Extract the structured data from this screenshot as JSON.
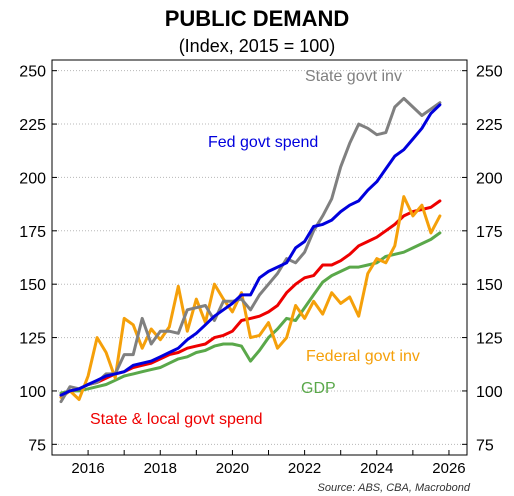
{
  "chart_data": {
    "type": "line",
    "title": "PUBLIC DEMAND",
    "subtitle": "(Index, 2015 = 100)",
    "source": "Source: ABS, CBA, Macrobond",
    "xlim": [
      2015,
      2026.5
    ],
    "ylim": [
      70,
      255
    ],
    "yticks": [
      75,
      100,
      125,
      150,
      175,
      200,
      225,
      250
    ],
    "xticks": [
      2016,
      2018,
      2020,
      2022,
      2024,
      2026
    ],
    "grid": "horizontal dotted",
    "series": [
      {
        "name": "State govt inv",
        "color": "#808080",
        "x": [
          2015.25,
          2015.5,
          2015.75,
          2016.0,
          2016.25,
          2016.5,
          2016.75,
          2017.0,
          2017.25,
          2017.5,
          2017.75,
          2018.0,
          2018.25,
          2018.5,
          2018.75,
          2019.0,
          2019.25,
          2019.5,
          2019.75,
          2020.0,
          2020.25,
          2020.5,
          2020.75,
          2021.0,
          2021.25,
          2021.5,
          2021.75,
          2022.0,
          2022.25,
          2022.5,
          2022.75,
          2023.0,
          2023.25,
          2023.5,
          2023.75,
          2024.0,
          2024.25,
          2024.5,
          2024.75,
          2025.0,
          2025.25,
          2025.5,
          2025.75
        ],
        "y": [
          95,
          102,
          101,
          103,
          104,
          108,
          108,
          117,
          117,
          134,
          122,
          128,
          128,
          127,
          138,
          139,
          140,
          133,
          142,
          142,
          143,
          138,
          145,
          150,
          155,
          162,
          160,
          165,
          175,
          182,
          190,
          205,
          216,
          225,
          223,
          220,
          221,
          233,
          237,
          233,
          229,
          232,
          235
        ]
      },
      {
        "name": "Fed govt spend",
        "color": "#0000dd",
        "x": [
          2015.25,
          2015.5,
          2015.75,
          2016.0,
          2016.25,
          2016.5,
          2016.75,
          2017.0,
          2017.25,
          2017.5,
          2017.75,
          2018.0,
          2018.25,
          2018.5,
          2018.75,
          2019.0,
          2019.25,
          2019.5,
          2019.75,
          2020.0,
          2020.25,
          2020.5,
          2020.75,
          2021.0,
          2021.25,
          2021.5,
          2021.75,
          2022.0,
          2022.25,
          2022.5,
          2022.75,
          2023.0,
          2023.25,
          2023.5,
          2023.75,
          2024.0,
          2024.25,
          2024.5,
          2024.75,
          2025.0,
          2025.25,
          2025.5,
          2025.75
        ],
        "y": [
          98,
          100,
          101,
          103,
          105,
          107,
          108,
          109,
          112,
          113,
          114,
          116,
          118,
          120,
          124,
          127,
          131,
          135,
          138,
          141,
          145,
          145,
          153,
          156,
          158,
          160,
          167,
          170,
          177,
          178,
          180,
          184,
          187,
          189,
          194,
          198,
          204,
          210,
          213,
          218,
          223,
          230,
          234
        ]
      },
      {
        "name": "Federal govt inv",
        "color": "#f5a00a",
        "x": [
          2015.25,
          2015.5,
          2015.75,
          2016.0,
          2016.25,
          2016.5,
          2016.75,
          2017.0,
          2017.25,
          2017.5,
          2017.75,
          2018.0,
          2018.25,
          2018.5,
          2018.75,
          2019.0,
          2019.25,
          2019.5,
          2019.75,
          2020.0,
          2020.25,
          2020.5,
          2020.75,
          2021.0,
          2021.25,
          2021.5,
          2021.75,
          2022.0,
          2022.25,
          2022.5,
          2022.75,
          2023.0,
          2023.25,
          2023.5,
          2023.75,
          2024.0,
          2024.25,
          2024.5,
          2024.75,
          2025.0,
          2025.25,
          2025.5,
          2025.75
        ],
        "y": [
          97,
          100,
          96,
          107,
          125,
          118,
          106,
          134,
          131,
          120,
          129,
          124,
          130,
          149,
          128,
          143,
          132,
          150,
          143,
          137,
          146,
          125,
          126,
          132,
          120,
          125,
          140,
          134,
          142,
          136,
          146,
          141,
          144,
          135,
          155,
          162,
          160,
          168,
          191,
          182,
          187,
          174,
          182
        ]
      },
      {
        "name": "State & local govt spend",
        "color": "#ee0000",
        "x": [
          2015.25,
          2015.5,
          2015.75,
          2016.0,
          2016.25,
          2016.5,
          2016.75,
          2017.0,
          2017.25,
          2017.5,
          2017.75,
          2018.0,
          2018.25,
          2018.5,
          2018.75,
          2019.0,
          2019.25,
          2019.5,
          2019.75,
          2020.0,
          2020.25,
          2020.5,
          2020.75,
          2021.0,
          2021.25,
          2021.5,
          2021.75,
          2022.0,
          2022.25,
          2022.5,
          2022.75,
          2023.0,
          2023.25,
          2023.5,
          2023.75,
          2024.0,
          2024.25,
          2024.5,
          2024.75,
          2025.0,
          2025.25,
          2025.5,
          2025.75
        ],
        "y": [
          98,
          100,
          101,
          103,
          104,
          106,
          108,
          109,
          111,
          112,
          113,
          115,
          117,
          118,
          120,
          121,
          122,
          125,
          126,
          128,
          133,
          134,
          135,
          137,
          140,
          146,
          150,
          153,
          154,
          159,
          159,
          161,
          164,
          168,
          170,
          172,
          175,
          178,
          182,
          184,
          185,
          186,
          189
        ]
      },
      {
        "name": "GDP",
        "color": "#5aa84a",
        "x": [
          2015.25,
          2015.5,
          2015.75,
          2016.0,
          2016.25,
          2016.5,
          2016.75,
          2017.0,
          2017.25,
          2017.5,
          2017.75,
          2018.0,
          2018.25,
          2018.5,
          2018.75,
          2019.0,
          2019.25,
          2019.5,
          2019.75,
          2020.0,
          2020.25,
          2020.5,
          2020.75,
          2021.0,
          2021.25,
          2021.5,
          2021.75,
          2022.0,
          2022.25,
          2022.5,
          2022.75,
          2023.0,
          2023.25,
          2023.5,
          2023.75,
          2024.0,
          2024.25,
          2024.5,
          2024.75,
          2025.0,
          2025.25,
          2025.5,
          2025.75
        ],
        "y": [
          99,
          100,
          100,
          101,
          102,
          103,
          105,
          107,
          108,
          109,
          110,
          111,
          113,
          115,
          116,
          118,
          119,
          121,
          122,
          122,
          121,
          114,
          119,
          125,
          129,
          134,
          133,
          139,
          145,
          151,
          154,
          156,
          158,
          158,
          159,
          160,
          163,
          164,
          165,
          167,
          169,
          171,
          174
        ]
      }
    ],
    "labels": [
      {
        "text": "State govt inv",
        "series": 0
      },
      {
        "text": "Fed govt spend",
        "series": 1
      },
      {
        "text": "Federal govt inv",
        "series": 2
      },
      {
        "text": "GDP",
        "series": 4
      },
      {
        "text": "State & local govt spend",
        "series": 3
      }
    ]
  }
}
